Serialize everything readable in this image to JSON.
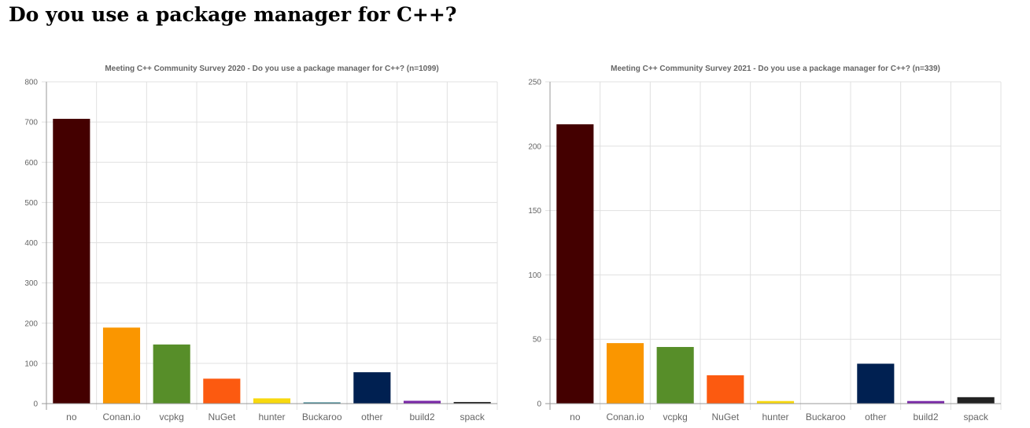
{
  "page": {
    "title": "Do you use a package manager for C++?"
  },
  "chart_data": [
    {
      "type": "bar",
      "title": "Meeting C++ Community Survey 2020 - Do you use a package manager for C++? (n=1099)",
      "categories": [
        "no",
        "Conan.io",
        "vcpkg",
        "NuGet",
        "hunter",
        "Buckaroo",
        "other",
        "build2",
        "spack"
      ],
      "values": [
        708,
        189,
        147,
        62,
        13,
        1,
        78,
        7,
        4
      ],
      "colors": [
        "#440000",
        "#fa9600",
        "#578e29",
        "#fc5a10",
        "#f8d90e",
        "#1a6b7a",
        "#002051",
        "#7a29a8",
        "#222222"
      ],
      "ylim": [
        0,
        800
      ],
      "yticks": [
        0,
        100,
        200,
        300,
        400,
        500,
        600,
        700,
        800
      ],
      "xlabel": "",
      "ylabel": "",
      "grid": true,
      "legend": false
    },
    {
      "type": "bar",
      "title": "Meeting C++ Community Survey 2021  - Do you use a package manager for C++? (n=339)",
      "categories": [
        "no",
        "Conan.io",
        "vcpkg",
        "NuGet",
        "hunter",
        "Buckaroo",
        "other",
        "build2",
        "spack"
      ],
      "values": [
        217,
        47,
        44,
        22,
        2,
        0,
        31,
        2,
        5
      ],
      "colors": [
        "#440000",
        "#fa9600",
        "#578e29",
        "#fc5a10",
        "#f8d90e",
        "#1a6b7a",
        "#002051",
        "#7a29a8",
        "#222222"
      ],
      "ylim": [
        0,
        250
      ],
      "yticks": [
        0,
        50,
        100,
        150,
        200,
        250
      ],
      "xlabel": "",
      "ylabel": "",
      "grid": true,
      "legend": false
    }
  ]
}
